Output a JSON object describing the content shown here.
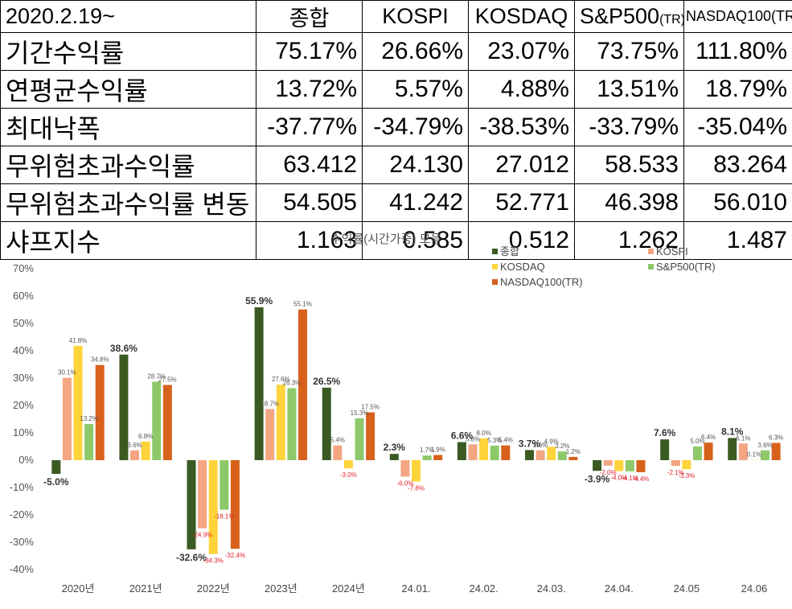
{
  "table": {
    "corner": "2020.2.19~",
    "headers": [
      "종합",
      "KOSPI",
      "KOSDAQ",
      "S&P500",
      "NASDAQ100(TR"
    ],
    "header_tail": "(TR)",
    "rows": [
      {
        "label": "기간수익률",
        "values": [
          "75.17%",
          "26.66%",
          "23.07%",
          "73.75%",
          "111.80%"
        ]
      },
      {
        "label": "연평균수익률",
        "values": [
          "13.72%",
          "5.57%",
          "4.88%",
          "13.51%",
          "18.79%"
        ]
      },
      {
        "label": "최대낙폭",
        "values": [
          "-37.77%",
          "-34.79%",
          "-38.53%",
          "-33.79%",
          "-35.04%"
        ]
      },
      {
        "label": "무위험초과수익률",
        "values": [
          "63.412",
          "24.130",
          "27.012",
          "58.533",
          "83.264"
        ]
      },
      {
        "label": "무위험초과수익률 변동",
        "values": [
          "54.505",
          "41.242",
          "52.771",
          "46.398",
          "56.010"
        ]
      },
      {
        "label": "샤프지수",
        "values": [
          "1.163",
          "0.585",
          "0.512",
          "1.262",
          "1.487"
        ]
      }
    ]
  },
  "chart_data": {
    "type": "bar",
    "title": "수익률(시간가중) 모음",
    "categories": [
      "2020년",
      "2021년",
      "2022년",
      "2023년",
      "2024년",
      "24.01.",
      "24.02.",
      "24.03.",
      "24.04.",
      "24.05",
      "24.06"
    ],
    "ylim": [
      -40,
      70
    ],
    "yticks": [
      "-40%",
      "-30%",
      "-20%",
      "-10%",
      "0%",
      "10%",
      "20%",
      "30%",
      "40%",
      "50%",
      "60%",
      "70%"
    ],
    "grid": false,
    "legend_position": "top-right",
    "series": [
      {
        "name": "종합",
        "color": "#3a5a22",
        "values": [
          -5.0,
          38.6,
          -32.6,
          55.9,
          26.5,
          2.3,
          6.6,
          3.7,
          -3.9,
          7.6,
          8.1
        ],
        "labels": [
          "-5.0%",
          "38.6%",
          "-32.6%",
          "55.9%",
          "26.5%",
          "2.3%",
          "6.6%",
          "3.7%",
          "-3.9%",
          "7.6%",
          "8.1%"
        ]
      },
      {
        "name": "KOSPI",
        "color": "#f4a582",
        "values": [
          30.1,
          3.6,
          -24.9,
          18.7,
          5.4,
          -6.0,
          5.8,
          3.6,
          -2.0,
          -2.1,
          6.1
        ],
        "labels": [
          "30.1%",
          "3.6%",
          "-24.9%",
          "18.7%",
          "5.4%",
          "-6.0%",
          "5.8%",
          "3.6%",
          "-2.0%",
          "-2.1%",
          "6.1%"
        ]
      },
      {
        "name": "KOSDAQ",
        "color": "#ffd43b",
        "values": [
          41.8,
          6.8,
          -34.3,
          27.6,
          -3.0,
          -7.8,
          8.0,
          4.9,
          -4.0,
          -3.3,
          0.1
        ],
        "labels": [
          "41.8%",
          "6.8%",
          "-34.3%",
          "27.6%",
          "-3.0%",
          "-7.8%",
          "8.0%",
          "4.9%",
          "-4.0%",
          "-3.3%",
          "0.1%"
        ]
      },
      {
        "name": "S&P500(TR)",
        "color": "#8dc96b",
        "values": [
          13.2,
          28.7,
          -18.1,
          26.3,
          15.3,
          1.7,
          5.3,
          3.2,
          -4.1,
          5.0,
          3.6
        ],
        "labels": [
          "13.2%",
          "28.7%",
          "-18.1%",
          "26.3%",
          "15.3%",
          "1.7%",
          "5.3%",
          "3.2%",
          "-4.1%",
          "5.0%",
          "3.6%"
        ]
      },
      {
        "name": "NASDAQ100(TR)",
        "color": "#d8611c",
        "values": [
          34.8,
          27.5,
          -32.4,
          55.1,
          17.5,
          1.9,
          5.4,
          1.2,
          -4.4,
          6.4,
          6.3
        ],
        "labels": [
          "34.8%",
          "27.5%",
          "-32.4%",
          "55.1%",
          "17.5%",
          "1.9%",
          "5.4%",
          "1.2%",
          "-4.4%",
          "6.4%",
          "6.3%"
        ]
      }
    ]
  }
}
